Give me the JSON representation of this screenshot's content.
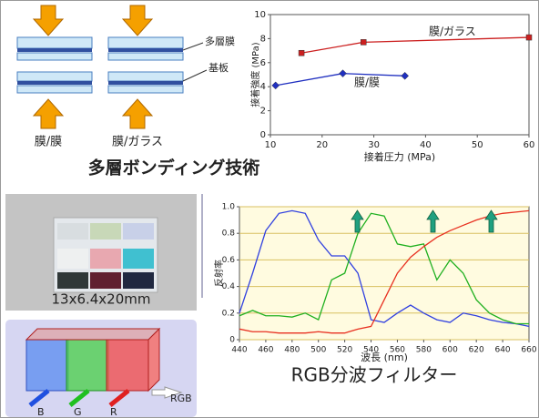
{
  "diagram": {
    "layer_labels": [
      "多層膜",
      "基板"
    ],
    "pair_labels": [
      "膜/膜",
      "膜/ガラス"
    ],
    "caption": "多層ボンディング技術"
  },
  "photo": {
    "dimension": "13x6.4x20mm"
  },
  "rgb_diagram": {
    "input": "RGB",
    "outputs": [
      "B",
      "G",
      "R"
    ]
  },
  "chart_data": [
    {
      "type": "line",
      "xlabel": "接着圧力 (MPa)",
      "ylabel": "接着強度 (MPa)",
      "xlim": [
        10,
        60
      ],
      "xticks": [
        10,
        20,
        30,
        40,
        50,
        60
      ],
      "ylim": [
        0,
        10
      ],
      "yticks": [
        0,
        2,
        4,
        6,
        8,
        10
      ],
      "grid": false,
      "series": [
        {
          "name": "膜/ガラス",
          "color": "#cc2020",
          "marker": "square",
          "x": [
            16,
            28,
            60
          ],
          "values": [
            6.8,
            7.7,
            8.1
          ]
        },
        {
          "name": "膜/膜",
          "color": "#2030c0",
          "marker": "diamond",
          "x": [
            11,
            24,
            36
          ],
          "values": [
            4.1,
            5.1,
            4.9
          ]
        }
      ]
    },
    {
      "type": "line",
      "title": "RGB分波フィルター",
      "xlabel": "波長 (nm)",
      "ylabel": "反射率",
      "xlim": [
        440,
        660
      ],
      "xticks": [
        440,
        460,
        480,
        500,
        520,
        540,
        560,
        580,
        600,
        620,
        640,
        660
      ],
      "ylim": [
        0,
        1
      ],
      "yticks": [
        0,
        0.2,
        0.4,
        0.6,
        0.8,
        {
          "value": 1,
          "label": "1.0"
        }
      ],
      "grid": true,
      "plot_background": "#fffbe0",
      "grid_color": "#d8c060",
      "x": [
        440,
        450,
        460,
        470,
        480,
        490,
        500,
        510,
        520,
        530,
        540,
        550,
        560,
        570,
        580,
        590,
        600,
        610,
        620,
        630,
        640,
        650,
        660
      ],
      "series": [
        {
          "color": "#3040e0",
          "values": [
            0.2,
            0.5,
            0.82,
            0.95,
            0.97,
            0.95,
            0.75,
            0.63,
            0.63,
            0.5,
            0.15,
            0.13,
            0.2,
            0.26,
            0.2,
            0.15,
            0.13,
            0.2,
            0.18,
            0.15,
            0.13,
            0.12,
            0.1
          ]
        },
        {
          "color": "#20b020",
          "values": [
            0.18,
            0.22,
            0.18,
            0.18,
            0.17,
            0.2,
            0.15,
            0.45,
            0.5,
            0.8,
            0.95,
            0.93,
            0.72,
            0.7,
            0.72,
            0.45,
            0.6,
            0.5,
            0.3,
            0.2,
            0.15,
            0.12,
            0.12
          ]
        },
        {
          "color": "#e83020",
          "values": [
            0.08,
            0.06,
            0.06,
            0.05,
            0.05,
            0.05,
            0.06,
            0.05,
            0.05,
            0.08,
            0.1,
            0.3,
            0.5,
            0.62,
            0.7,
            0.77,
            0.82,
            0.86,
            0.9,
            0.93,
            0.95,
            0.96,
            0.97
          ]
        }
      ]
    }
  ]
}
